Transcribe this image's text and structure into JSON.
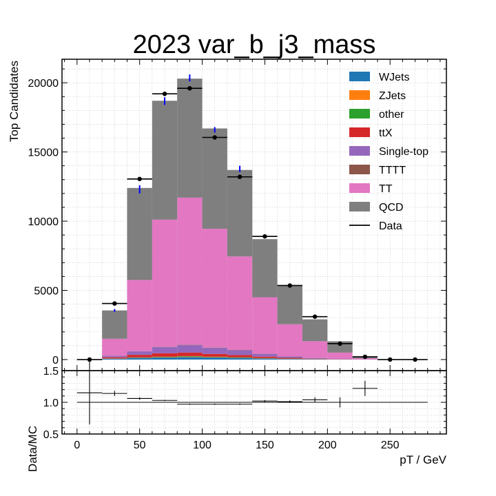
{
  "chart_data": {
    "type": "bar",
    "title": "2023 var_b_j3_mass",
    "xlabel": "pT / GeV",
    "ylabel": "Top Candidates",
    "ratio_ylabel": "Data/MC",
    "xlim": [
      -12,
      295
    ],
    "ylim": [
      -800,
      21700
    ],
    "ratio_ylim": [
      0.5,
      1.5
    ],
    "xticks": [
      0,
      50,
      100,
      150,
      200,
      250
    ],
    "yticks": [
      0,
      5000,
      10000,
      15000,
      20000
    ],
    "ratio_yticks": [
      0.5,
      1.0,
      1.5
    ],
    "grid": true,
    "legend_position": "top-right",
    "bin_edges": [
      0,
      20,
      40,
      60,
      80,
      100,
      120,
      140,
      160,
      180,
      200,
      220,
      240,
      260,
      280
    ],
    "series": [
      {
        "name": "WJets",
        "color": "#1f77b4",
        "values": [
          0,
          60,
          120,
          150,
          180,
          150,
          120,
          80,
          40,
          20,
          10,
          5,
          0,
          0
        ]
      },
      {
        "name": "ZJets",
        "color": "#ff7f0e",
        "values": [
          0,
          10,
          20,
          25,
          30,
          25,
          20,
          15,
          10,
          5,
          0,
          0,
          0,
          0
        ]
      },
      {
        "name": "other",
        "color": "#2ca02c",
        "values": [
          0,
          10,
          20,
          30,
          40,
          30,
          25,
          15,
          10,
          5,
          0,
          0,
          0,
          0
        ]
      },
      {
        "name": "ttX",
        "color": "#d62728",
        "values": [
          0,
          80,
          180,
          250,
          250,
          200,
          160,
          100,
          60,
          30,
          10,
          5,
          0,
          0
        ]
      },
      {
        "name": "Single-top",
        "color": "#9467bd",
        "values": [
          0,
          100,
          250,
          450,
          550,
          450,
          350,
          200,
          100,
          50,
          20,
          10,
          0,
          0
        ]
      },
      {
        "name": "TTTT",
        "color": "#8c564b",
        "values": [
          0,
          10,
          10,
          20,
          20,
          20,
          20,
          10,
          10,
          5,
          0,
          0,
          0,
          0
        ]
      },
      {
        "name": "TT",
        "color": "#e377c2",
        "values": [
          0,
          1230,
          5150,
          9185,
          10630,
          8575,
          6755,
          4080,
          2320,
          1210,
          460,
          80,
          0,
          0
        ]
      },
      {
        "name": "QCD",
        "color": "#7f7f7f",
        "values": [
          0,
          2050,
          6650,
          8590,
          8600,
          7250,
          6250,
          4200,
          2820,
          1580,
          820,
          100,
          0,
          0
        ]
      }
    ],
    "data": {
      "name": "Data",
      "x": [
        10,
        30,
        50,
        70,
        90,
        110,
        130,
        150,
        170,
        190,
        210,
        230,
        250,
        270
      ],
      "values": [
        0,
        4050,
        13050,
        19200,
        19600,
        16050,
        13200,
        8900,
        5350,
        3100,
        1150,
        200,
        0,
        0
      ]
    },
    "mc_error_bars": {
      "color": "#0000ff",
      "x": [
        30,
        50,
        70,
        90,
        110,
        130
      ],
      "low": [
        3450,
        12000,
        18400,
        20100,
        16400,
        13550
      ],
      "high": [
        3650,
        12600,
        18950,
        20600,
        16800,
        14000
      ]
    },
    "ratio": {
      "x": [
        10,
        30,
        50,
        70,
        90,
        110,
        130,
        150,
        170,
        190,
        210,
        230
      ],
      "values": [
        1.15,
        1.14,
        1.06,
        1.03,
        0.97,
        0.97,
        0.97,
        1.02,
        1.01,
        1.04,
        1.0,
        1.22
      ],
      "err_low": [
        0.5,
        0.04,
        0.02,
        0.01,
        0.01,
        0.01,
        0.01,
        0.015,
        0.02,
        0.04,
        0.08,
        0.12
      ],
      "err_high": [
        0.5,
        0.04,
        0.02,
        0.01,
        0.01,
        0.01,
        0.01,
        0.015,
        0.02,
        0.04,
        0.08,
        0.12
      ]
    }
  }
}
